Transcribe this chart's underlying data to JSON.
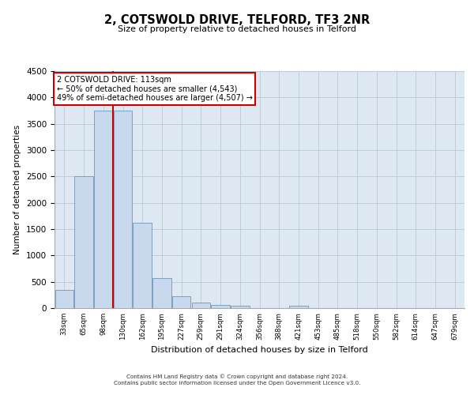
{
  "title": "2, COTSWOLD DRIVE, TELFORD, TF3 2NR",
  "subtitle": "Size of property relative to detached houses in Telford",
  "xlabel": "Distribution of detached houses by size in Telford",
  "ylabel": "Number of detached properties",
  "categories": [
    "33sqm",
    "65sqm",
    "98sqm",
    "130sqm",
    "162sqm",
    "195sqm",
    "227sqm",
    "259sqm",
    "291sqm",
    "324sqm",
    "356sqm",
    "388sqm",
    "421sqm",
    "453sqm",
    "485sqm",
    "518sqm",
    "550sqm",
    "582sqm",
    "614sqm",
    "647sqm",
    "679sqm"
  ],
  "values": [
    350,
    2500,
    3750,
    3750,
    1625,
    575,
    225,
    100,
    55,
    40,
    0,
    0,
    40,
    0,
    0,
    0,
    0,
    0,
    0,
    0,
    0
  ],
  "bar_color": "#c8d9ee",
  "bar_edge_color": "#7096b8",
  "red_line_x": 2.5,
  "annotation_title": "2 COTSWOLD DRIVE: 113sqm",
  "annotation_line1": "← 50% of detached houses are smaller (4,543)",
  "annotation_line2": "49% of semi-detached houses are larger (4,507) →",
  "annotation_box_color": "#ffffff",
  "annotation_box_edge": "#cc0000",
  "red_line_color": "#cc0000",
  "ylim": [
    0,
    4500
  ],
  "yticks": [
    0,
    500,
    1000,
    1500,
    2000,
    2500,
    3000,
    3500,
    4000,
    4500
  ],
  "grid_color": "#c0ccd8",
  "background_color": "#dde8f2",
  "footer_line1": "Contains HM Land Registry data © Crown copyright and database right 2024.",
  "footer_line2": "Contains public sector information licensed under the Open Government Licence v3.0."
}
